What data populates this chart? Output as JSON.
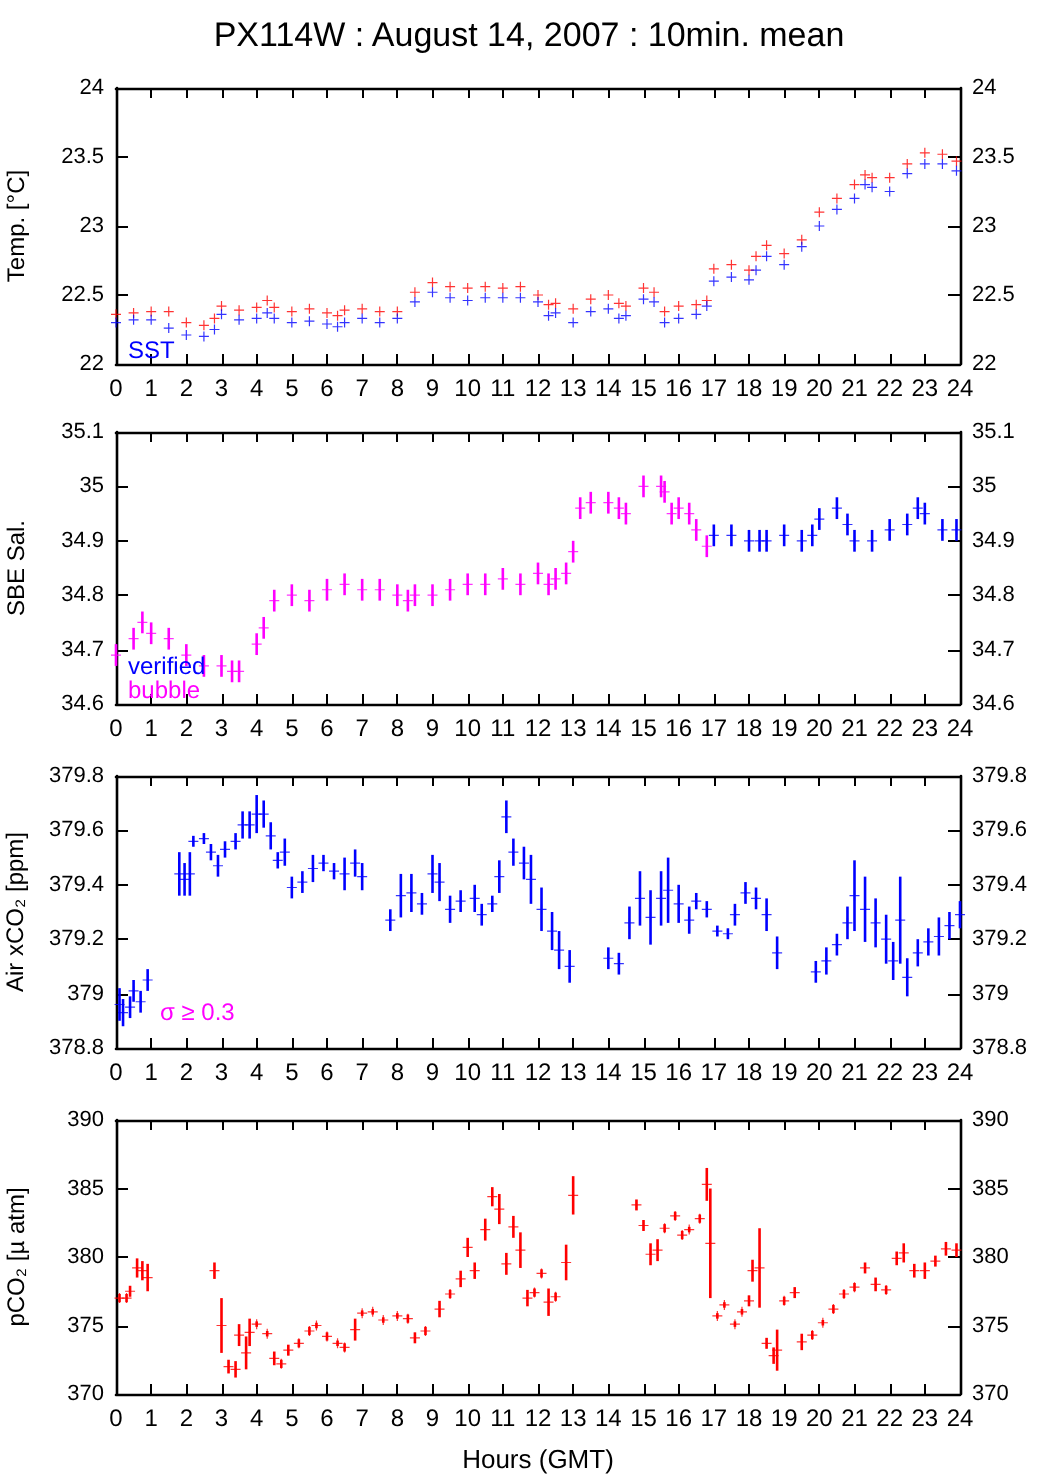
{
  "chart_data": [
    {
      "type": "scatter",
      "title": "PX114W : August 14, 2007 : 10min. mean",
      "ylabel": "Temp. [°C]",
      "xlim": [
        0,
        24
      ],
      "xticks": [
        0,
        1,
        2,
        3,
        4,
        5,
        6,
        7,
        8,
        9,
        10,
        11,
        12,
        13,
        14,
        15,
        16,
        17,
        18,
        19,
        20,
        21,
        22,
        23,
        24
      ],
      "ylim": [
        22,
        24
      ],
      "yticks": [
        22,
        22.5,
        23,
        23.5,
        24
      ],
      "y2lim": [
        22,
        24
      ],
      "y2ticks": [
        22,
        22.5,
        23,
        23.5,
        24
      ],
      "marker": "cross",
      "grid": false,
      "legend": "bottom left",
      "x": [
        0,
        0.5,
        1,
        1.5,
        2,
        2.5,
        2.8,
        3,
        3.5,
        4,
        4.3,
        4.5,
        5,
        5.5,
        6,
        6.3,
        6.5,
        7,
        7.5,
        8,
        8.5,
        9,
        9.5,
        10,
        10.5,
        11,
        11.5,
        12,
        12.3,
        12.5,
        13,
        13.5,
        14,
        14.3,
        14.5,
        15,
        15.3,
        15.6,
        16,
        16.5,
        16.8,
        17,
        17.5,
        18,
        18.2,
        18.5,
        19,
        19.5,
        20,
        20.5,
        21,
        21.3,
        21.5,
        22,
        22.5,
        23,
        23.5,
        23.9
      ],
      "series": [
        {
          "color": "#ff0000",
          "values": [
            22.36,
            22.37,
            22.38,
            22.38,
            22.3,
            22.28,
            22.33,
            22.42,
            22.39,
            22.41,
            22.46,
            22.41,
            22.38,
            22.4,
            22.37,
            22.35,
            22.39,
            22.4,
            22.38,
            22.38,
            22.52,
            22.59,
            22.56,
            22.55,
            22.56,
            22.55,
            22.56,
            22.5,
            22.43,
            22.44,
            22.4,
            22.47,
            22.5,
            22.44,
            22.42,
            22.55,
            22.52,
            22.38,
            22.42,
            22.43,
            22.46,
            22.69,
            22.72,
            22.68,
            22.78,
            22.86,
            22.8,
            22.9,
            23.1,
            23.2,
            23.3,
            23.37,
            23.35,
            23.35,
            23.45,
            23.53,
            23.52,
            23.47
          ]
        },
        {
          "name": "SST",
          "color": "#0000ff",
          "values": [
            22.3,
            22.32,
            22.32,
            22.26,
            22.21,
            22.2,
            22.25,
            22.36,
            22.32,
            22.33,
            22.37,
            22.33,
            22.3,
            22.31,
            22.29,
            22.27,
            22.3,
            22.33,
            22.3,
            22.33,
            22.45,
            22.52,
            22.48,
            22.46,
            22.48,
            22.48,
            22.48,
            22.45,
            22.35,
            22.37,
            22.3,
            22.38,
            22.4,
            22.33,
            22.35,
            22.47,
            22.45,
            22.3,
            22.33,
            22.36,
            22.42,
            22.6,
            22.63,
            22.61,
            22.68,
            22.78,
            22.72,
            22.85,
            23.0,
            23.12,
            23.2,
            23.3,
            23.28,
            23.25,
            23.38,
            23.45,
            23.45,
            23.4
          ]
        }
      ]
    },
    {
      "type": "scatter",
      "ylabel": "SBE Sal.",
      "xlim": [
        0,
        24
      ],
      "xticks": [
        0,
        1,
        2,
        3,
        4,
        5,
        6,
        7,
        8,
        9,
        10,
        11,
        12,
        13,
        14,
        15,
        16,
        17,
        18,
        19,
        20,
        21,
        22,
        23,
        24
      ],
      "ylim": [
        34.6,
        35.1
      ],
      "yticks": [
        34.6,
        34.7,
        34.8,
        34.9,
        35,
        35.1
      ],
      "y2lim": [
        34.6,
        35.1
      ],
      "y2ticks": [
        34.6,
        34.7,
        34.8,
        34.9,
        35,
        35.1
      ],
      "marker": "cross",
      "grid": false,
      "legend": "bottom left",
      "series": [
        {
          "name": "verified",
          "color": "#0000ff",
          "x": [
            17,
            17.5,
            18,
            18.3,
            18.5,
            19,
            19.5,
            19.8,
            20,
            20.5,
            20.8,
            21,
            21.5,
            22,
            22.5,
            22.8,
            23,
            23.5,
            23.9
          ],
          "values": [
            34.91,
            34.91,
            34.9,
            34.9,
            34.9,
            34.91,
            34.9,
            34.91,
            34.94,
            34.96,
            34.93,
            34.9,
            34.9,
            34.92,
            34.93,
            34.96,
            34.95,
            34.92,
            34.92
          ],
          "errors": [
            0.02,
            0.02,
            0.02,
            0.02,
            0.02,
            0.02,
            0.02,
            0.02,
            0.02,
            0.02,
            0.02,
            0.02,
            0.02,
            0.02,
            0.02,
            0.02,
            0.02,
            0.02,
            0.02
          ]
        },
        {
          "name": "bubble",
          "color": "#ff00ff",
          "x": [
            0,
            0.5,
            0.75,
            1,
            1.5,
            2,
            2.5,
            3,
            3.3,
            3.5,
            4,
            4.2,
            4.5,
            5,
            5.5,
            6,
            6.5,
            7,
            7.5,
            8,
            8.3,
            8.5,
            9,
            9.5,
            10,
            10.5,
            11,
            11.5,
            12,
            12.3,
            12.5,
            12.8,
            13,
            13.2,
            13.5,
            14,
            14.3,
            14.5,
            15,
            15.5,
            15.6,
            15.8,
            16,
            16.3,
            16.5,
            16.8
          ],
          "values": [
            34.69,
            34.72,
            34.75,
            34.73,
            34.72,
            34.69,
            34.67,
            34.67,
            34.66,
            34.66,
            34.71,
            34.74,
            34.79,
            34.8,
            34.79,
            34.81,
            34.82,
            34.81,
            34.81,
            34.8,
            34.79,
            34.8,
            34.8,
            34.81,
            34.82,
            34.82,
            34.83,
            34.82,
            34.84,
            34.82,
            34.83,
            34.84,
            34.88,
            34.96,
            34.97,
            34.97,
            34.96,
            34.95,
            35.0,
            35.0,
            34.99,
            34.95,
            34.96,
            34.95,
            34.92,
            34.89
          ],
          "errors": [
            0.02,
            0.02,
            0.02,
            0.02,
            0.02,
            0.02,
            0.02,
            0.02,
            0.02,
            0.02,
            0.02,
            0.02,
            0.02,
            0.02,
            0.02,
            0.02,
            0.02,
            0.02,
            0.02,
            0.02,
            0.02,
            0.02,
            0.02,
            0.02,
            0.02,
            0.02,
            0.02,
            0.02,
            0.02,
            0.02,
            0.02,
            0.02,
            0.02,
            0.02,
            0.02,
            0.02,
            0.02,
            0.02,
            0.02,
            0.02,
            0.02,
            0.02,
            0.02,
            0.02,
            0.02,
            0.02
          ]
        }
      ]
    },
    {
      "type": "scatter",
      "ylabel": "Air xCO₂ [ppm]",
      "xlim": [
        0,
        24
      ],
      "xticks": [
        0,
        1,
        2,
        3,
        4,
        5,
        6,
        7,
        8,
        9,
        10,
        11,
        12,
        13,
        14,
        15,
        16,
        17,
        18,
        19,
        20,
        21,
        22,
        23,
        24
      ],
      "ylim": [
        378.8,
        379.8
      ],
      "yticks": [
        378.8,
        379,
        379.2,
        379.4,
        379.6,
        379.8
      ],
      "y2lim": [
        378.8,
        379.8
      ],
      "y2ticks": [
        378.8,
        379,
        379.2,
        379.4,
        379.6,
        379.8
      ],
      "marker": "cross",
      "grid": false,
      "annotations": [
        "σ ≥ 0.3"
      ],
      "series": [
        {
          "color": "#0000ff",
          "x": [
            0.1,
            0.2,
            0.4,
            0.5,
            0.7,
            0.9,
            1.8,
            1.95,
            2.1,
            2.2,
            2.5,
            2.7,
            2.9,
            3.1,
            3.4,
            3.6,
            3.8,
            4.0,
            4.2,
            4.4,
            4.6,
            4.8,
            5.0,
            5.3,
            5.6,
            5.9,
            6.2,
            6.5,
            6.8,
            7.0,
            7.8,
            8.1,
            8.4,
            8.7,
            9.0,
            9.2,
            9.5,
            9.8,
            10.2,
            10.4,
            10.7,
            10.9,
            11.1,
            11.3,
            11.6,
            11.8,
            12.1,
            12.4,
            12.6,
            12.9,
            14.0,
            14.3,
            14.6,
            14.9,
            15.2,
            15.5,
            15.7,
            16.0,
            16.3,
            16.5,
            16.8,
            17.1,
            17.4,
            17.6,
            17.9,
            18.2,
            18.5,
            18.8,
            19.9,
            20.2,
            20.5,
            20.8,
            21.0,
            21.3,
            21.6,
            21.9,
            22.1,
            22.3,
            22.5,
            22.8,
            23.1,
            23.4,
            23.7,
            24.0
          ],
          "values": [
            378.96,
            378.93,
            378.95,
            379.01,
            378.97,
            379.05,
            379.44,
            379.42,
            379.44,
            379.56,
            379.57,
            379.52,
            379.47,
            379.53,
            379.56,
            379.62,
            379.62,
            379.66,
            379.66,
            379.58,
            379.49,
            379.52,
            379.39,
            379.41,
            379.46,
            379.48,
            379.45,
            379.44,
            379.48,
            379.43,
            379.27,
            379.36,
            379.37,
            379.33,
            379.44,
            379.41,
            379.31,
            379.34,
            379.35,
            379.29,
            379.33,
            379.43,
            379.65,
            379.52,
            379.48,
            379.42,
            379.31,
            379.23,
            379.16,
            379.1,
            379.13,
            379.11,
            379.26,
            379.35,
            379.28,
            379.35,
            379.38,
            379.33,
            379.27,
            379.34,
            379.31,
            379.23,
            379.22,
            379.29,
            379.37,
            379.35,
            379.29,
            379.15,
            379.08,
            379.12,
            379.18,
            379.26,
            379.36,
            379.31,
            379.26,
            379.2,
            379.12,
            379.27,
            379.06,
            379.15,
            379.19,
            379.21,
            379.25,
            379.29
          ],
          "errors": [
            0.06,
            0.05,
            0.04,
            0.04,
            0.04,
            0.04,
            0.08,
            0.06,
            0.08,
            0.02,
            0.02,
            0.03,
            0.04,
            0.03,
            0.03,
            0.05,
            0.05,
            0.07,
            0.05,
            0.05,
            0.03,
            0.05,
            0.04,
            0.04,
            0.05,
            0.03,
            0.03,
            0.06,
            0.05,
            0.05,
            0.04,
            0.08,
            0.07,
            0.04,
            0.07,
            0.07,
            0.05,
            0.04,
            0.05,
            0.04,
            0.03,
            0.06,
            0.06,
            0.05,
            0.06,
            0.09,
            0.08,
            0.07,
            0.07,
            0.06,
            0.04,
            0.04,
            0.06,
            0.1,
            0.1,
            0.1,
            0.12,
            0.07,
            0.05,
            0.03,
            0.03,
            0.02,
            0.02,
            0.04,
            0.04,
            0.04,
            0.06,
            0.06,
            0.04,
            0.05,
            0.04,
            0.06,
            0.13,
            0.12,
            0.09,
            0.09,
            0.07,
            0.16,
            0.07,
            0.05,
            0.05,
            0.07,
            0.05,
            0.05
          ]
        }
      ]
    },
    {
      "type": "scatter",
      "ylabel": "pCO₂ [µ atm]",
      "xlabel": "Hours (GMT)",
      "xlim": [
        0,
        24
      ],
      "xticks": [
        0,
        1,
        2,
        3,
        4,
        5,
        6,
        7,
        8,
        9,
        10,
        11,
        12,
        13,
        14,
        15,
        16,
        17,
        18,
        19,
        20,
        21,
        22,
        23,
        24
      ],
      "ylim": [
        370,
        390
      ],
      "yticks": [
        370,
        375,
        380,
        385,
        390
      ],
      "y2lim": [
        370,
        390
      ],
      "y2ticks": [
        370,
        375,
        380,
        385,
        390
      ],
      "marker": "cross",
      "grid": false,
      "series": [
        {
          "color": "#ff0000",
          "x": [
            0.1,
            0.3,
            0.4,
            0.6,
            0.75,
            0.9,
            2.8,
            3.0,
            3.2,
            3.4,
            3.5,
            3.7,
            3.8,
            4.0,
            4.3,
            4.5,
            4.7,
            4.9,
            5.2,
            5.5,
            5.7,
            6.0,
            6.3,
            6.5,
            6.8,
            7.0,
            7.3,
            7.6,
            8.0,
            8.3,
            8.5,
            8.8,
            9.2,
            9.5,
            9.8,
            10.0,
            10.2,
            10.5,
            10.7,
            10.9,
            11.1,
            11.3,
            11.5,
            11.7,
            11.9,
            12.1,
            12.3,
            12.5,
            12.8,
            13.0,
            14.8,
            15.0,
            15.2,
            15.4,
            15.6,
            15.9,
            16.1,
            16.3,
            16.6,
            16.8,
            16.9,
            17.1,
            17.3,
            17.6,
            17.8,
            18.0,
            18.1,
            18.3,
            18.5,
            18.7,
            18.8,
            19.0,
            19.3,
            19.5,
            19.8,
            20.1,
            20.4,
            20.7,
            21.0,
            21.3,
            21.6,
            21.9,
            22.2,
            22.4,
            22.7,
            23.0,
            23.3,
            23.6,
            23.9
          ],
          "values": [
            377,
            377,
            377.5,
            379.2,
            379,
            378.5,
            379,
            375,
            372,
            371.8,
            374.3,
            373,
            374.5,
            375.1,
            374.4,
            372.6,
            372.2,
            373.2,
            373.7,
            374.6,
            375,
            374.2,
            373.7,
            373.4,
            374.7,
            375.9,
            376,
            375.4,
            375.7,
            375.5,
            374.1,
            374.6,
            376.2,
            377.3,
            378.4,
            380.7,
            379,
            382,
            384.4,
            383.5,
            379.5,
            382.2,
            380.5,
            377,
            377.4,
            378.8,
            376.7,
            377.1,
            379.6,
            384.5,
            383.8,
            382.3,
            380.2,
            380.5,
            382.1,
            383,
            381.6,
            382,
            382.8,
            385.3,
            381,
            375.7,
            376.5,
            375.1,
            376,
            376.8,
            379,
            379.2,
            373.7,
            372.8,
            373.2,
            376.8,
            377.4,
            373.8,
            374.3,
            375.2,
            376.2,
            377.3,
            377.8,
            379.2,
            378,
            377.6,
            379.9,
            380.3,
            379,
            379,
            379.7,
            380.6,
            380.5
          ],
          "errors": [
            0.3,
            0.3,
            0.4,
            0.7,
            0.7,
            1,
            0.6,
            2,
            0.5,
            0.6,
            0.8,
            1.2,
            1,
            0.2,
            0.2,
            0.5,
            0.3,
            0.4,
            0.3,
            0.3,
            0.2,
            0.3,
            0.2,
            0.3,
            0.8,
            0.2,
            0.2,
            0.2,
            0.2,
            0.3,
            0.4,
            0.3,
            0.6,
            0.3,
            0.6,
            0.7,
            0.6,
            0.8,
            0.7,
            1.1,
            0.8,
            0.8,
            1.3,
            0.6,
            0.3,
            0.3,
            1,
            0.3,
            1.3,
            1.4,
            0.4,
            0.4,
            0.8,
            0.8,
            0.3,
            0.3,
            0.3,
            0.2,
            0.3,
            1.2,
            4,
            0.2,
            0.2,
            0.2,
            0.2,
            0.4,
            0.8,
            2.9,
            0.4,
            0.6,
            1.5,
            0.3,
            0.4,
            0.6,
            0.3,
            0.2,
            0.3,
            0.3,
            0.3,
            0.4,
            0.5,
            0.3,
            0.5,
            0.7,
            0.5,
            0.6,
            0.4,
            0.5,
            0.5
          ]
        }
      ]
    }
  ]
}
